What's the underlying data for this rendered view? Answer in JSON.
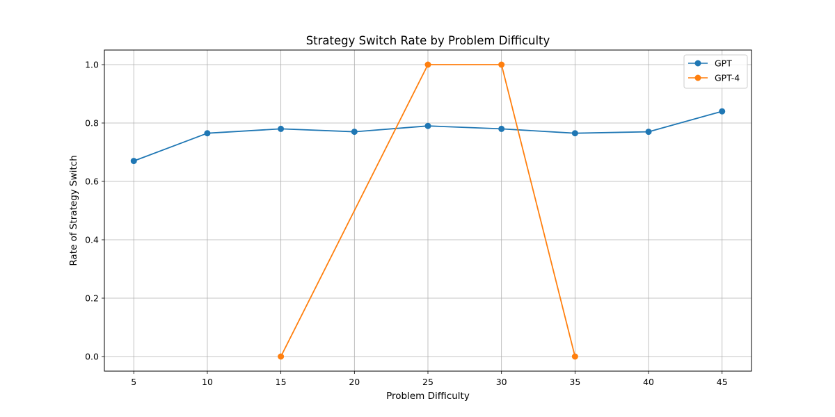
{
  "chart_data": {
    "type": "line",
    "title": "Strategy Switch Rate by Problem Difficulty",
    "xlabel": "Problem Difficulty",
    "ylabel": "Rate of Strategy Switch",
    "x_ticks": [
      5,
      10,
      15,
      20,
      25,
      30,
      35,
      40,
      45
    ],
    "y_ticks": [
      0.0,
      0.2,
      0.4,
      0.6,
      0.8,
      1.0
    ],
    "y_tick_labels": [
      "0.0",
      "0.2",
      "0.4",
      "0.6",
      "0.8",
      "1.0"
    ],
    "xlim": [
      3,
      47
    ],
    "ylim": [
      -0.05,
      1.05
    ],
    "grid": true,
    "legend_position": "top-right",
    "series": [
      {
        "name": "GPT",
        "color": "#1f77b4",
        "marker": "circle",
        "x": [
          5,
          10,
          15,
          20,
          25,
          30,
          35,
          40,
          45
        ],
        "y": [
          0.67,
          0.765,
          0.78,
          0.77,
          0.79,
          0.78,
          0.765,
          0.77,
          0.84
        ]
      },
      {
        "name": "GPT-4",
        "color": "#ff7f0e",
        "marker": "circle",
        "x": [
          15,
          25,
          30,
          35
        ],
        "y": [
          0.0,
          1.0,
          1.0,
          0.0
        ]
      }
    ]
  }
}
